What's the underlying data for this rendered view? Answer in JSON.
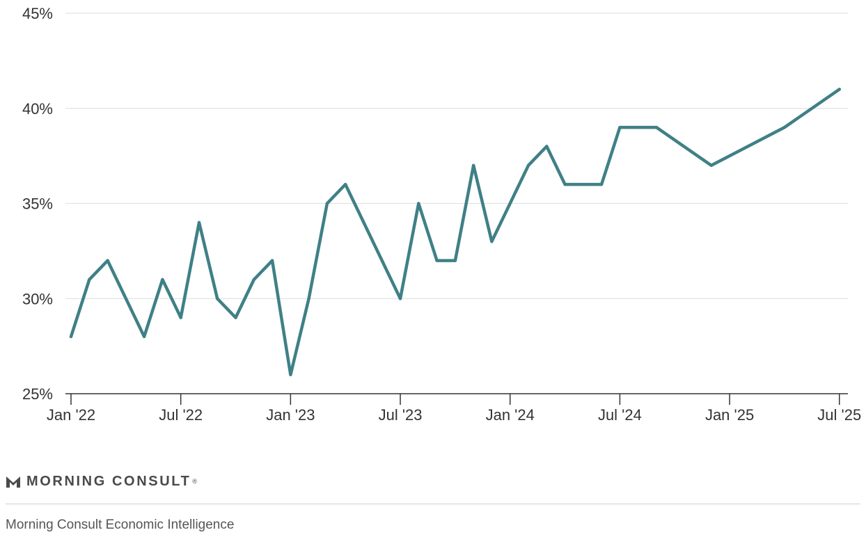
{
  "chart_data": {
    "type": "line",
    "title": "",
    "xlabel": "",
    "ylabel": "",
    "ylim": [
      25,
      45
    ],
    "y_ticks": [
      "25%",
      "30%",
      "35%",
      "40%",
      "45%"
    ],
    "y_tick_values": [
      25,
      30,
      35,
      40,
      45
    ],
    "x_ticks": [
      "Jan '22",
      "Jul '22",
      "Jan '23",
      "Jul '23",
      "Jan '24",
      "Jul '24",
      "Jan '25",
      "Jul '25"
    ],
    "x_tick_values": [
      "2022-01",
      "2022-07",
      "2023-01",
      "2023-07",
      "2024-01",
      "2024-07",
      "2025-01",
      "2025-07"
    ],
    "grid": true,
    "line_color": "#3f8086",
    "series": [
      {
        "x": [
          "2022-01",
          "2022-02",
          "2022-03",
          "2022-05",
          "2022-06",
          "2022-07",
          "2022-08",
          "2022-09",
          "2022-10",
          "2022-11",
          "2022-12",
          "2023-01",
          "2023-02",
          "2023-03",
          "2023-04",
          "2023-07",
          "2023-08",
          "2023-09",
          "2023-10",
          "2023-11",
          "2023-12",
          "2024-02",
          "2024-03",
          "2024-04",
          "2024-06",
          "2024-07",
          "2024-09",
          "2024-12",
          "2025-04",
          "2025-07"
        ],
        "values": [
          28,
          31,
          32,
          28,
          31,
          29,
          34,
          30,
          29,
          31,
          32,
          26,
          30,
          35,
          36,
          30,
          35,
          32,
          32,
          37,
          33,
          37,
          38,
          36,
          36,
          39,
          39,
          37,
          39,
          41
        ]
      }
    ]
  },
  "footer": {
    "brand": "MORNING CONSULT",
    "brand_mark": "®",
    "logo_icon": "morning-consult-logo-icon",
    "source": "Morning Consult Economic Intelligence"
  }
}
